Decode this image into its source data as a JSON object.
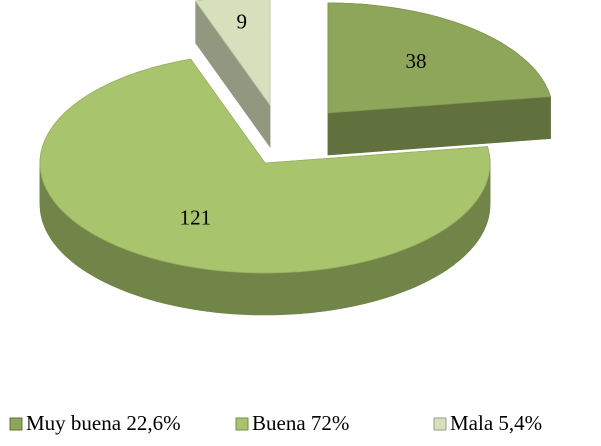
{
  "chart_data": {
    "type": "pie",
    "categories": [
      "Muy buena 22,6%",
      "Buena 72%",
      "Mala 5,4%"
    ],
    "values": [
      38,
      121,
      9
    ],
    "colors": [
      "#8ea65a",
      "#a8c46c",
      "#d6e0bc"
    ],
    "legend": "bottom"
  }
}
